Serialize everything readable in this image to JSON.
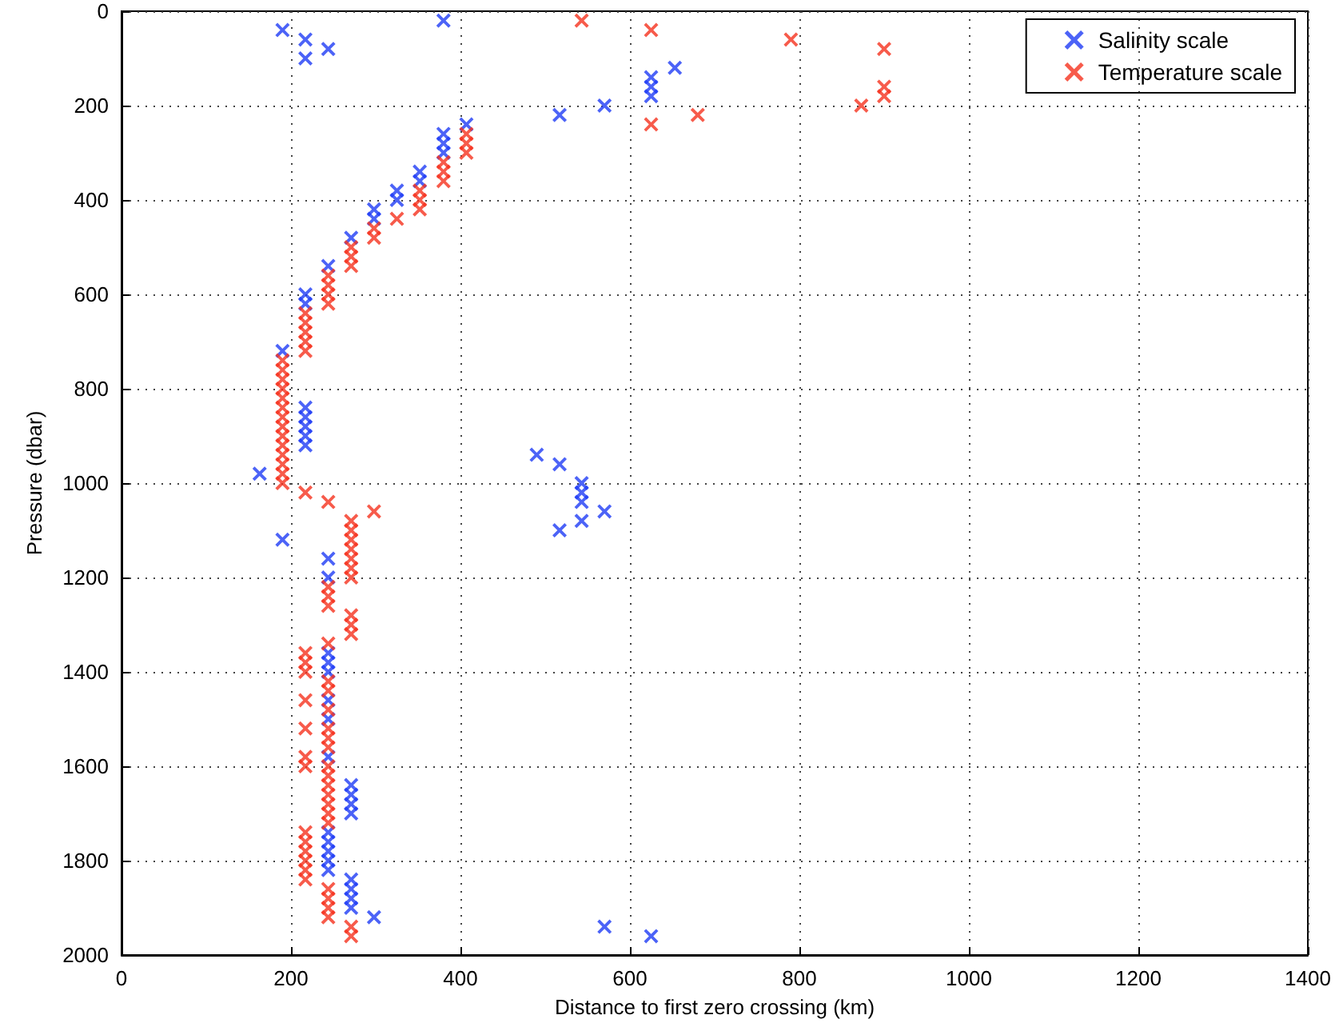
{
  "chart_data": {
    "type": "scatter",
    "xlabel": "Distance to first zero crossing (km)",
    "ylabel": "Pressure (dbar)",
    "xlim": [
      0,
      1400
    ],
    "xticks": [
      0,
      200,
      400,
      600,
      800,
      1000,
      1200,
      1400
    ],
    "ylim": [
      2000,
      0
    ],
    "yticks": [
      0,
      200,
      400,
      600,
      800,
      1000,
      1200,
      1400,
      1600,
      1800,
      2000
    ],
    "grid": true,
    "legend": "top right",
    "marker": "cross",
    "series": [
      {
        "name": "Salinity scale",
        "color": "#1f3cf5",
        "x": [
          190,
          217,
          217,
          244,
          380,
          653,
          625,
          625,
          625,
          570,
          517,
          407,
          380,
          380,
          380,
          352,
          352,
          325,
          325,
          298,
          298,
          271,
          244,
          217,
          217,
          190,
          217,
          217,
          217,
          217,
          217,
          163,
          190,
          490,
          517,
          543,
          543,
          543,
          570,
          543,
          517,
          244,
          244,
          244,
          244,
          244,
          244,
          244,
          244,
          271,
          271,
          271,
          271,
          244,
          244,
          244,
          244,
          244,
          271,
          271,
          271,
          271,
          298,
          570,
          625
        ],
        "values": [
          40,
          60,
          100,
          80,
          20,
          120,
          140,
          160,
          180,
          200,
          220,
          240,
          260,
          280,
          300,
          340,
          360,
          380,
          400,
          420,
          440,
          480,
          540,
          600,
          620,
          720,
          840,
          860,
          880,
          900,
          920,
          980,
          1120,
          940,
          960,
          1000,
          1020,
          1040,
          1060,
          1080,
          1100,
          1160,
          1200,
          1360,
          1380,
          1400,
          1460,
          1500,
          1580,
          1640,
          1660,
          1680,
          1700,
          1740,
          1760,
          1780,
          1800,
          1820,
          1840,
          1860,
          1880,
          1900,
          1920,
          1940,
          1960
        ]
      },
      {
        "name": "Temperature scale",
        "color": "#f5321e",
        "x": [
          543,
          625,
          790,
          900,
          900,
          900,
          873,
          680,
          625,
          407,
          407,
          407,
          380,
          380,
          380,
          352,
          352,
          352,
          325,
          298,
          298,
          271,
          271,
          271,
          244,
          244,
          244,
          244,
          217,
          217,
          217,
          217,
          217,
          190,
          190,
          190,
          190,
          190,
          190,
          190,
          190,
          190,
          190,
          190,
          190,
          190,
          190,
          217,
          244,
          298,
          271,
          271,
          271,
          271,
          271,
          271,
          271,
          244,
          244,
          244,
          271,
          271,
          271,
          244,
          217,
          217,
          217,
          217,
          217,
          217,
          217,
          244,
          244,
          244,
          244,
          244,
          244,
          244,
          244,
          244,
          244,
          244,
          244,
          244,
          217,
          217,
          217,
          217,
          217,
          217,
          244,
          244,
          244,
          244,
          271,
          271
        ],
        "values": [
          20,
          40,
          60,
          80,
          160,
          180,
          200,
          220,
          240,
          260,
          280,
          300,
          320,
          340,
          360,
          380,
          400,
          420,
          440,
          460,
          480,
          500,
          520,
          540,
          560,
          580,
          600,
          620,
          640,
          660,
          680,
          700,
          720,
          740,
          760,
          780,
          800,
          820,
          840,
          860,
          880,
          900,
          920,
          940,
          960,
          980,
          1000,
          1020,
          1040,
          1060,
          1080,
          1100,
          1120,
          1140,
          1160,
          1180,
          1200,
          1220,
          1240,
          1260,
          1280,
          1300,
          1320,
          1340,
          1360,
          1380,
          1400,
          1460,
          1520,
          1580,
          1600,
          1420,
          1440,
          1480,
          1520,
          1540,
          1560,
          1600,
          1620,
          1640,
          1660,
          1680,
          1700,
          1720,
          1740,
          1760,
          1780,
          1800,
          1820,
          1840,
          1860,
          1880,
          1900,
          1920,
          1940,
          1960
        ]
      }
    ]
  }
}
